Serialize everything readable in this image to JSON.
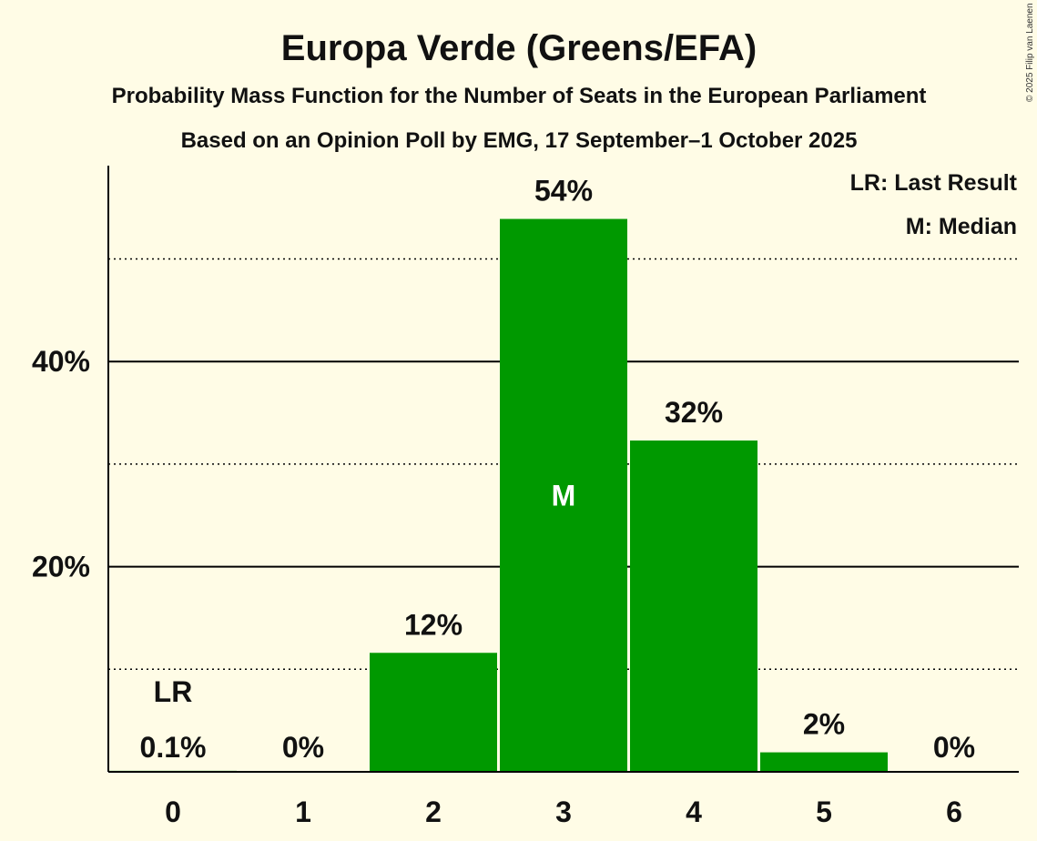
{
  "chart_data": {
    "type": "bar",
    "title": "Europa Verde (Greens/EFA)",
    "subtitle": "Probability Mass Function for the Number of Seats in the European Parliament",
    "subtitle2": "Based on an Opinion Poll by EMG, 17 September–1 October 2025",
    "copyright": "© 2025 Filip van Laenen",
    "legend": [
      "LR: Last Result",
      "M: Median"
    ],
    "categories": [
      "0",
      "1",
      "2",
      "3",
      "4",
      "5",
      "6"
    ],
    "values": [
      0.1,
      0,
      11.6,
      53.9,
      32.3,
      1.9,
      0
    ],
    "value_labels": [
      "0.1%",
      "0%",
      "12%",
      "54%",
      "32%",
      "2%",
      "0%"
    ],
    "last_result_label": "LR",
    "last_result_seats": "0",
    "median_label": "M",
    "median_seats": "3",
    "y_ticks": [
      {
        "value": 20,
        "label": "20%"
      },
      {
        "value": 40,
        "label": "40%"
      }
    ],
    "minor_gridlines": [
      10,
      30,
      50
    ],
    "ylim": [
      0,
      59
    ],
    "bar_color": "#009900",
    "xlabel": "",
    "ylabel": ""
  }
}
